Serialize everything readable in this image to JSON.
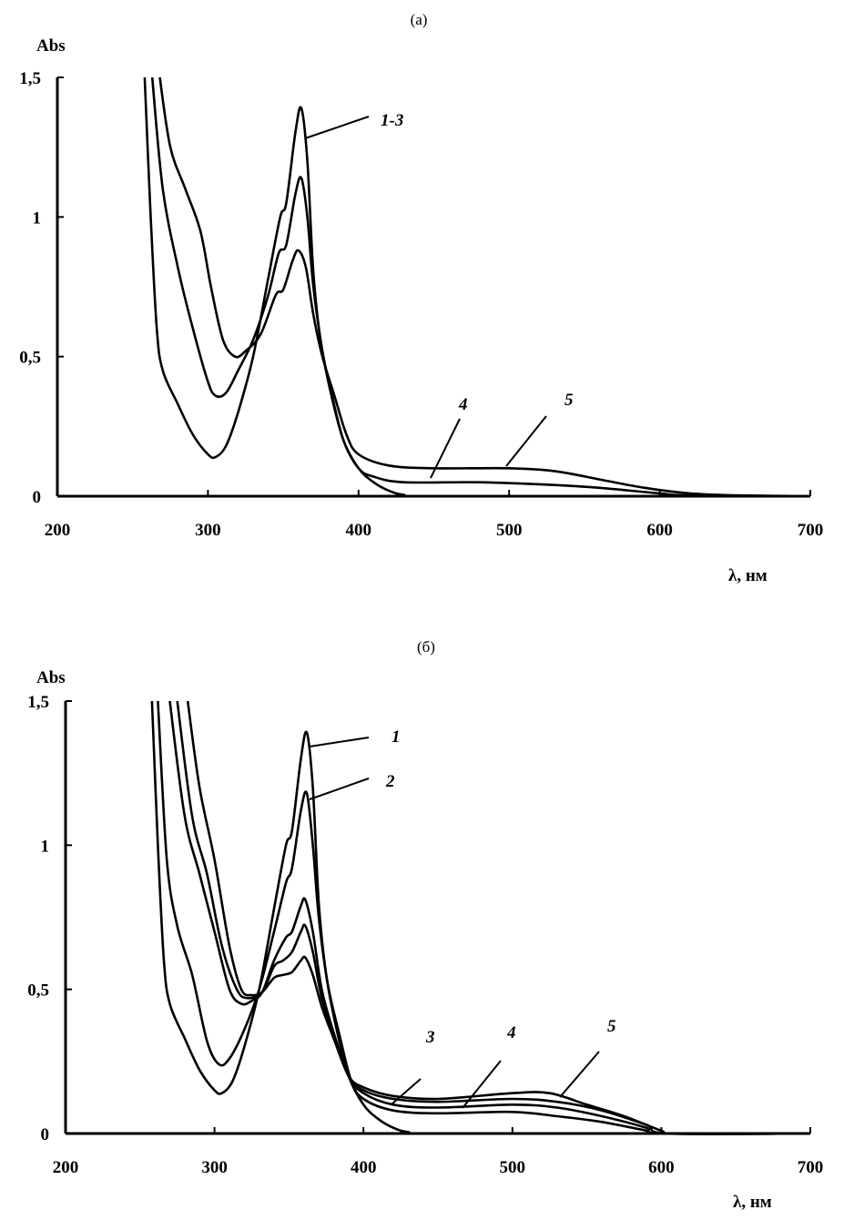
{
  "chart_data": [
    {
      "type": "line",
      "title": "(a)",
      "ylabel": "Abs",
      "xlabel": "λ, нм",
      "xlim": [
        200,
        700
      ],
      "ylim": [
        0,
        1.5
      ],
      "x_ticks": [
        "200",
        "300",
        "400",
        "500",
        "600",
        "700"
      ],
      "y_ticks": [
        "0",
        "0,5",
        "1",
        "1,5"
      ],
      "grid": false,
      "color": "#000000",
      "series": [
        {
          "name": "1-3",
          "points": [
            [
              258,
              1.5
            ],
            [
              262,
              1.0
            ],
            [
              266,
              0.6
            ],
            [
              270,
              0.45
            ],
            [
              280,
              0.33
            ],
            [
              290,
              0.22
            ],
            [
              300,
              0.15
            ],
            [
              305,
              0.14
            ],
            [
              312,
              0.18
            ],
            [
              320,
              0.3
            ],
            [
              330,
              0.5
            ],
            [
              340,
              0.78
            ],
            [
              348,
              1.0
            ],
            [
              352,
              1.05
            ],
            [
              358,
              1.3
            ],
            [
              362,
              1.39
            ],
            [
              366,
              1.2
            ],
            [
              370,
              0.8
            ],
            [
              375,
              0.55
            ],
            [
              382,
              0.36
            ],
            [
              390,
              0.2
            ],
            [
              400,
              0.1
            ],
            [
              410,
              0.05
            ],
            [
              420,
              0.02
            ],
            [
              430,
              0.005
            ],
            [
              450,
              0
            ],
            [
              700,
              0
            ]
          ]
        },
        {
          "name": "4",
          "points": [
            [
              263,
              1.5
            ],
            [
              270,
              1.1
            ],
            [
              280,
              0.82
            ],
            [
              290,
              0.6
            ],
            [
              300,
              0.41
            ],
            [
              305,
              0.36
            ],
            [
              312,
              0.37
            ],
            [
              320,
              0.45
            ],
            [
              330,
              0.56
            ],
            [
              340,
              0.72
            ],
            [
              347,
              0.87
            ],
            [
              352,
              0.9
            ],
            [
              358,
              1.08
            ],
            [
              362,
              1.14
            ],
            [
              366,
              1.0
            ],
            [
              370,
              0.75
            ],
            [
              376,
              0.52
            ],
            [
              382,
              0.37
            ],
            [
              390,
              0.2
            ],
            [
              400,
              0.1
            ],
            [
              410,
              0.07
            ],
            [
              430,
              0.05
            ],
            [
              480,
              0.05
            ],
            [
              530,
              0.04
            ],
            [
              560,
              0.03
            ],
            [
              600,
              0.01
            ],
            [
              620,
              0.003
            ],
            [
              700,
              0
            ]
          ]
        },
        {
          "name": "5",
          "points": [
            [
              268,
              1.5
            ],
            [
              275,
              1.25
            ],
            [
              285,
              1.1
            ],
            [
              295,
              0.95
            ],
            [
              302,
              0.75
            ],
            [
              310,
              0.56
            ],
            [
              318,
              0.5
            ],
            [
              325,
              0.52
            ],
            [
              335,
              0.58
            ],
            [
              345,
              0.72
            ],
            [
              350,
              0.74
            ],
            [
              356,
              0.84
            ],
            [
              360,
              0.88
            ],
            [
              365,
              0.82
            ],
            [
              370,
              0.65
            ],
            [
              376,
              0.5
            ],
            [
              384,
              0.36
            ],
            [
              392,
              0.22
            ],
            [
              400,
              0.15
            ],
            [
              420,
              0.11
            ],
            [
              450,
              0.1
            ],
            [
              500,
              0.1
            ],
            [
              530,
              0.09
            ],
            [
              560,
              0.06
            ],
            [
              590,
              0.03
            ],
            [
              620,
              0.01
            ],
            [
              650,
              0.003
            ],
            [
              700,
              0
            ]
          ]
        }
      ]
    },
    {
      "type": "line",
      "title": "(б)",
      "ylabel": "Abs",
      "xlabel": "λ, нм",
      "xlim": [
        200,
        700
      ],
      "ylim": [
        0,
        1.5
      ],
      "x_ticks": [
        "200",
        "300",
        "400",
        "500",
        "600",
        "700"
      ],
      "y_ticks": [
        "0",
        "0,5",
        "1",
        "1,5"
      ],
      "grid": false,
      "color": "#000000",
      "series": [
        {
          "name": "1",
          "points": [
            [
              258,
              1.5
            ],
            [
              262,
              1.0
            ],
            [
              266,
              0.6
            ],
            [
              270,
              0.45
            ],
            [
              280,
              0.33
            ],
            [
              290,
              0.22
            ],
            [
              300,
              0.15
            ],
            [
              305,
              0.14
            ],
            [
              312,
              0.18
            ],
            [
              320,
              0.3
            ],
            [
              330,
              0.5
            ],
            [
              340,
              0.78
            ],
            [
              348,
              1.0
            ],
            [
              352,
              1.05
            ],
            [
              358,
              1.3
            ],
            [
              362,
              1.39
            ],
            [
              366,
              1.2
            ],
            [
              370,
              0.8
            ],
            [
              375,
              0.55
            ],
            [
              382,
              0.36
            ],
            [
              390,
              0.2
            ],
            [
              400,
              0.1
            ],
            [
              410,
              0.05
            ],
            [
              420,
              0.02
            ],
            [
              430,
              0.005
            ],
            [
              450,
              0
            ],
            [
              700,
              0
            ]
          ]
        },
        {
          "name": "2",
          "points": [
            [
              262,
              1.5
            ],
            [
              268,
              0.95
            ],
            [
              275,
              0.72
            ],
            [
              285,
              0.55
            ],
            [
              295,
              0.32
            ],
            [
              303,
              0.24
            ],
            [
              310,
              0.26
            ],
            [
              320,
              0.36
            ],
            [
              330,
              0.5
            ],
            [
              340,
              0.7
            ],
            [
              348,
              0.87
            ],
            [
              352,
              0.92
            ],
            [
              358,
              1.12
            ],
            [
              362,
              1.18
            ],
            [
              366,
              1.0
            ],
            [
              370,
              0.75
            ],
            [
              376,
              0.52
            ],
            [
              384,
              0.34
            ],
            [
              392,
              0.18
            ],
            [
              400,
              0.12
            ],
            [
              420,
              0.08
            ],
            [
              450,
              0.07
            ],
            [
              500,
              0.075
            ],
            [
              530,
              0.06
            ],
            [
              560,
              0.04
            ],
            [
              590,
              0.01
            ],
            [
              600,
              0
            ],
            [
              700,
              0
            ]
          ]
        },
        {
          "name": "3",
          "points": [
            [
              270,
              1.5
            ],
            [
              280,
              1.1
            ],
            [
              290,
              0.9
            ],
            [
              300,
              0.7
            ],
            [
              310,
              0.5
            ],
            [
              318,
              0.45
            ],
            [
              325,
              0.46
            ],
            [
              332,
              0.49
            ],
            [
              340,
              0.6
            ],
            [
              348,
              0.68
            ],
            [
              352,
              0.7
            ],
            [
              358,
              0.79
            ],
            [
              361,
              0.81
            ],
            [
              366,
              0.7
            ],
            [
              372,
              0.5
            ],
            [
              380,
              0.35
            ],
            [
              390,
              0.2
            ],
            [
              400,
              0.14
            ],
            [
              420,
              0.1
            ],
            [
              450,
              0.09
            ],
            [
              500,
              0.1
            ],
            [
              530,
              0.09
            ],
            [
              560,
              0.06
            ],
            [
              590,
              0.02
            ],
            [
              600,
              0
            ],
            [
              700,
              0
            ]
          ]
        },
        {
          "name": "4",
          "points": [
            [
              275,
              1.5
            ],
            [
              285,
              1.1
            ],
            [
              295,
              0.9
            ],
            [
              305,
              0.65
            ],
            [
              315,
              0.5
            ],
            [
              322,
              0.47
            ],
            [
              332,
              0.49
            ],
            [
              340,
              0.58
            ],
            [
              346,
              0.6
            ],
            [
              352,
              0.63
            ],
            [
              358,
              0.7
            ],
            [
              361,
              0.72
            ],
            [
              366,
              0.63
            ],
            [
              372,
              0.47
            ],
            [
              380,
              0.34
            ],
            [
              390,
              0.2
            ],
            [
              400,
              0.15
            ],
            [
              420,
              0.12
            ],
            [
              450,
              0.11
            ],
            [
              500,
              0.12
            ],
            [
              530,
              0.11
            ],
            [
              560,
              0.08
            ],
            [
              590,
              0.03
            ],
            [
              605,
              0
            ],
            [
              700,
              0
            ]
          ]
        },
        {
          "name": "5",
          "points": [
            [
              282,
              1.5
            ],
            [
              290,
              1.2
            ],
            [
              300,
              0.95
            ],
            [
              310,
              0.65
            ],
            [
              318,
              0.5
            ],
            [
              325,
              0.48
            ],
            [
              332,
              0.49
            ],
            [
              340,
              0.54
            ],
            [
              346,
              0.55
            ],
            [
              352,
              0.56
            ],
            [
              358,
              0.6
            ],
            [
              361,
              0.61
            ],
            [
              366,
              0.55
            ],
            [
              372,
              0.44
            ],
            [
              380,
              0.33
            ],
            [
              390,
              0.2
            ],
            [
              400,
              0.16
            ],
            [
              420,
              0.13
            ],
            [
              450,
              0.12
            ],
            [
              500,
              0.14
            ],
            [
              525,
              0.14
            ],
            [
              550,
              0.1
            ],
            [
              575,
              0.06
            ],
            [
              600,
              0.01
            ],
            [
              610,
              0
            ],
            [
              700,
              0
            ]
          ]
        }
      ]
    }
  ]
}
